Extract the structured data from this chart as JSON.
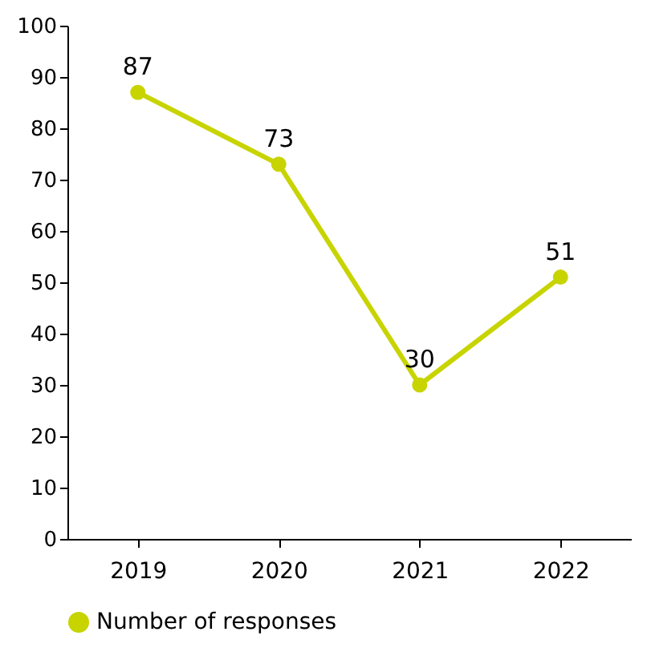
{
  "chart_data": {
    "type": "line",
    "categories": [
      "2019",
      "2020",
      "2021",
      "2022"
    ],
    "series": [
      {
        "name": "Number of responses",
        "color": "#c8d400",
        "values": [
          87,
          73,
          30,
          51
        ]
      }
    ],
    "ylim": [
      0,
      100
    ],
    "yticks": [
      0,
      10,
      20,
      30,
      40,
      50,
      60,
      70,
      80,
      90,
      100
    ],
    "grid": false,
    "legend": "bottom",
    "marker": "circle",
    "line_style": "solid",
    "data_labels": true
  }
}
